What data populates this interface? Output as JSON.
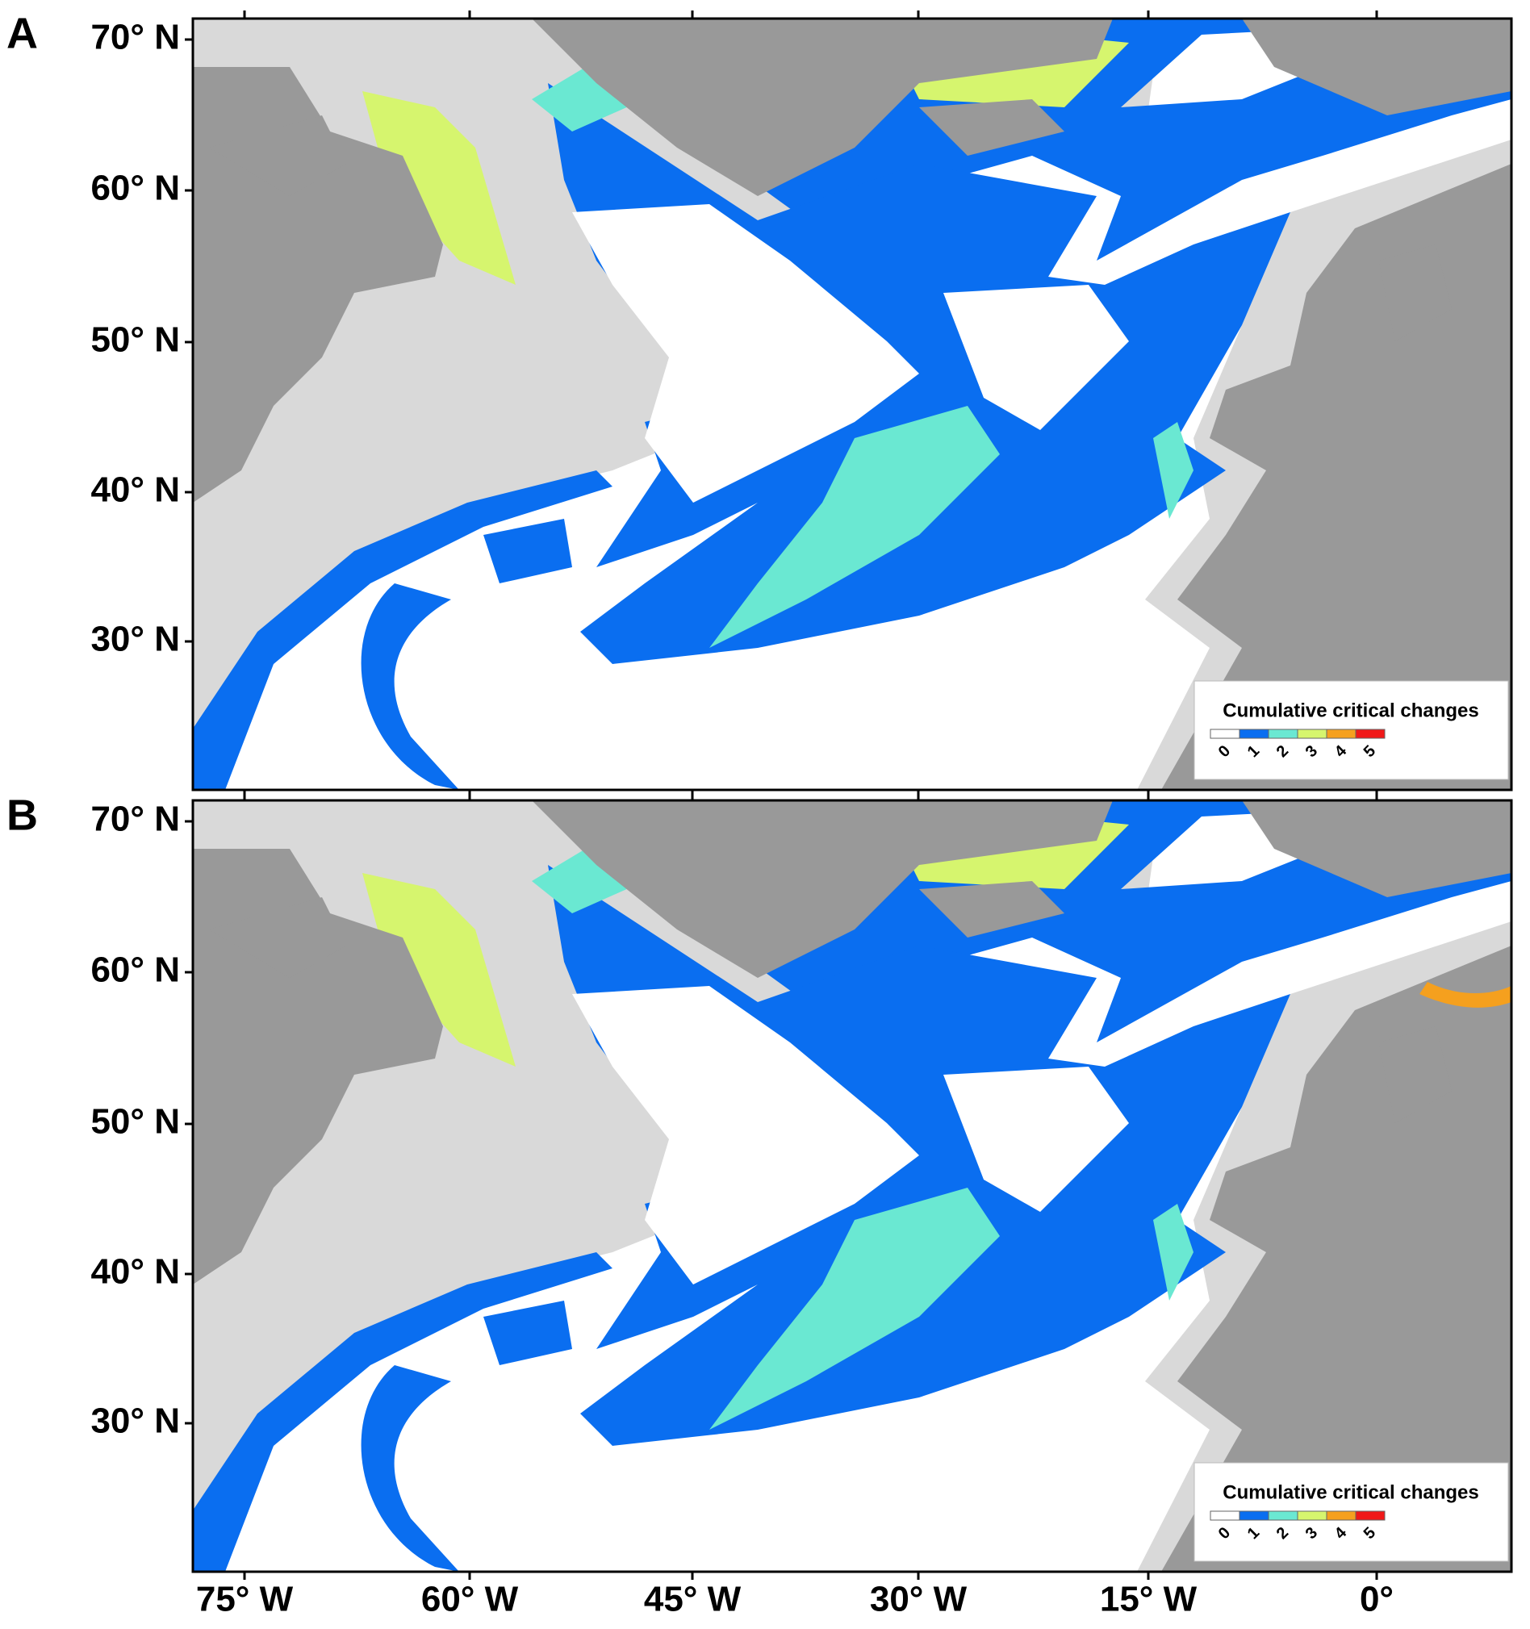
{
  "panels": [
    {
      "label": "A",
      "legend": {
        "title": "Cumulative critical changes",
        "classes": [
          {
            "label": "0",
            "color": "#ffffff"
          },
          {
            "label": "1",
            "color": "#0a6ef0"
          },
          {
            "label": "2",
            "color": "#6ae8d2"
          },
          {
            "label": "3",
            "color": "#d6f56e"
          },
          {
            "label": "4",
            "color": "#f5a01e"
          },
          {
            "label": "5",
            "color": "#f01818"
          }
        ]
      }
    },
    {
      "label": "B",
      "legend": {
        "title": "Cumulative critical changes",
        "classes": [
          {
            "label": "0",
            "color": "#ffffff"
          },
          {
            "label": "1",
            "color": "#0a6ef0"
          },
          {
            "label": "2",
            "color": "#6ae8d2"
          },
          {
            "label": "3",
            "color": "#d6f56e"
          },
          {
            "label": "4",
            "color": "#f5a01e"
          },
          {
            "label": "5",
            "color": "#f01818"
          }
        ]
      }
    }
  ],
  "lat_labels": [
    "70° N",
    "60° N",
    "50° N",
    "40° N",
    "30° N"
  ],
  "lon_labels": [
    "75° W",
    "60° W",
    "45° W",
    "30° W",
    "15° W",
    "0°"
  ]
}
